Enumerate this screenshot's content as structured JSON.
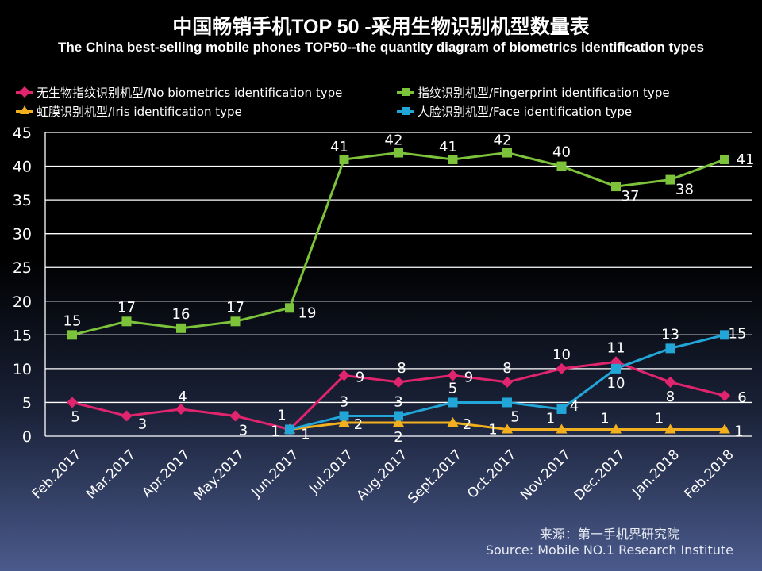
{
  "chart_data": {
    "type": "line",
    "title": "中国畅销手机TOP 50 -采用生物识别机型数量表",
    "subtitle": "The China best-selling mobile phones TOP50--the quantity diagram of biometrics identification types",
    "categories": [
      "Feb.2017",
      "Mar.2017",
      "Apr.2017",
      "May.2017",
      "Jun.2017",
      "Jul.2017",
      "Aug.2017",
      "Sept.2017",
      "Oct.2017",
      "Nov.2017",
      "Dec.2017",
      "Jan.2018",
      "Feb.2018"
    ],
    "ylim": [
      0,
      45
    ],
    "yticks": [
      0,
      5,
      10,
      15,
      20,
      25,
      30,
      35,
      40,
      45
    ],
    "grid": true,
    "legend_position": "top",
    "series": [
      {
        "name": "无生物指纹识别机型/No biometrics identification type",
        "color": "#e0246e",
        "marker": "diamond",
        "values": [
          5,
          3,
          4,
          3,
          1,
          9,
          8,
          9,
          8,
          10,
          11,
          8,
          6
        ]
      },
      {
        "name": "指纹识别机型/Fingerprint identification type",
        "color": "#7cc23a",
        "marker": "square",
        "values": [
          15,
          17,
          16,
          17,
          19,
          41,
          42,
          41,
          42,
          40,
          37,
          38,
          41
        ]
      },
      {
        "name": "虹膜识别机型/Iris identification type",
        "color": "#f2b01e",
        "marker": "triangle",
        "values": [
          null,
          null,
          null,
          null,
          1,
          2,
          2,
          2,
          1,
          1,
          1,
          1,
          1
        ]
      },
      {
        "name": "人脸识别机型/Face identification type",
        "color": "#22a6d8",
        "marker": "square",
        "values": [
          null,
          null,
          null,
          null,
          1,
          3,
          3,
          5,
          5,
          4,
          10,
          13,
          15
        ]
      }
    ]
  },
  "source": {
    "cn": "来源：第一手机界研究院",
    "en": "Source: Mobile NO.1 Research Institute"
  }
}
